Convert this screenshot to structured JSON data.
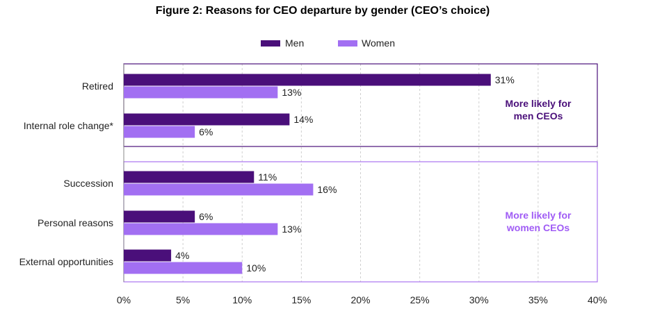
{
  "chart_data": {
    "type": "bar",
    "orientation": "horizontal",
    "title": "Figure 2: Reasons for CEO departure by gender (CEO’s choice)",
    "categories": [
      "Retired",
      "Internal role change*",
      "Succession",
      "Personal reasons",
      "External opportunities"
    ],
    "series": [
      {
        "name": "Men",
        "color": "#4a0f7a",
        "values": [
          31,
          14,
          11,
          6,
          4
        ]
      },
      {
        "name": "Women",
        "color": "#a26ff2",
        "values": [
          13,
          6,
          16,
          13,
          10
        ]
      }
    ],
    "data_labels": {
      "Men": [
        "31%",
        "14%",
        "11%",
        "6%",
        "4%"
      ],
      "Women": [
        "13%",
        "6%",
        "16%",
        "13%",
        "10%"
      ]
    },
    "xlim": [
      0,
      40
    ],
    "x_ticks": [
      0,
      5,
      10,
      15,
      20,
      25,
      30,
      35,
      40
    ],
    "x_tick_labels": [
      "0%",
      "5%",
      "10%",
      "15%",
      "20%",
      "25%",
      "30%",
      "35%",
      "40%"
    ],
    "grid": "vertical dashed",
    "legend": "top-center",
    "groups": [
      {
        "categories": [
          "Retired",
          "Internal role change*"
        ],
        "note_lines": [
          "More likely for",
          "men CEOs"
        ],
        "color": "#4a0f7a"
      },
      {
        "categories": [
          "Succession",
          "Personal reasons",
          "External opportunities"
        ],
        "note_lines": [
          "More likely for",
          "women CEOs"
        ],
        "color": "#a05cf5"
      }
    ]
  }
}
